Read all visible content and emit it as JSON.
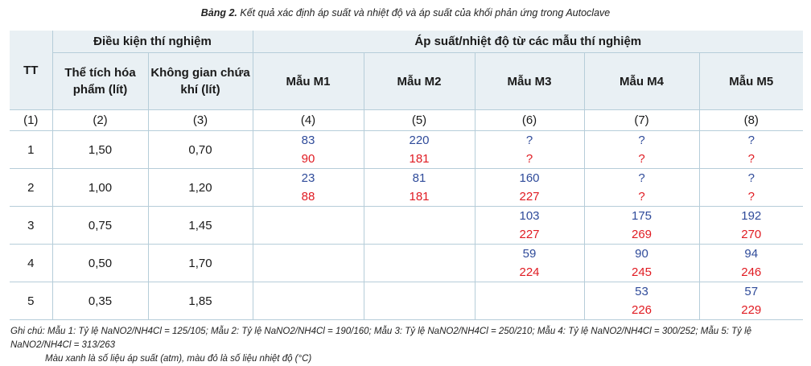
{
  "caption": {
    "bold": "Bảng 2.",
    "text": " Kết quả xác định áp suất và nhiệt độ và áp suất của khối phản ứng trong Autoclave"
  },
  "headers": {
    "tt": "TT",
    "conditions": "Điều kiện thí nghiệm",
    "volume": "Thể tích hóa phẩm (lít)",
    "space": "Không gian chứa khí (lít)",
    "results": "Áp suất/nhiệt độ từ các mẫu thí nghiệm",
    "samples": [
      "Mẫu M1",
      "Mẫu M2",
      "Mẫu M3",
      "Mẫu M4",
      "Mẫu M5"
    ]
  },
  "index_row": [
    "(1)",
    "(2)",
    "(3)",
    "(4)",
    "(5)",
    "(6)",
    "(7)",
    "(8)"
  ],
  "rows": [
    {
      "tt": "1",
      "volume": "1,50",
      "space": "0,70",
      "pressure": [
        "83",
        "220",
        "?",
        "?",
        "?"
      ],
      "temperature": [
        "90",
        "181",
        "?",
        "?",
        "?"
      ]
    },
    {
      "tt": "2",
      "volume": "1,00",
      "space": "1,20",
      "pressure": [
        "23",
        "81",
        "160",
        "?",
        "?"
      ],
      "temperature": [
        "88",
        "181",
        "227",
        "?",
        "?"
      ]
    },
    {
      "tt": "3",
      "volume": "0,75",
      "space": "1,45",
      "pressure": [
        "",
        "",
        "103",
        "175",
        "192"
      ],
      "temperature": [
        "",
        "",
        "227",
        "269",
        "270"
      ]
    },
    {
      "tt": "4",
      "volume": "0,50",
      "space": "1,70",
      "pressure": [
        "",
        "",
        "59",
        "90",
        "94"
      ],
      "temperature": [
        "",
        "",
        "224",
        "245",
        "246"
      ]
    },
    {
      "tt": "5",
      "volume": "0,35",
      "space": "1,85",
      "pressure": [
        "",
        "",
        "",
        "53",
        "57"
      ],
      "temperature": [
        "",
        "",
        "",
        "226",
        "229"
      ]
    }
  ],
  "note": {
    "line1": "Ghi chú: Mẫu 1: Tỷ lệ NaNO2/NH4Cl = 125/105; Mẫu 2: Tỷ lệ NaNO2/NH4Cl = 190/160; Mẫu 3: Tỷ lệ NaNO2/NH4Cl = 250/210; Mẫu 4: Tỷ lệ NaNO2/NH4Cl = 300/252; Mẫu 5: Tỷ lệ NaNO2/NH4Cl = 313/263",
    "line2": "Màu xanh là số liệu áp suất (atm), màu đỏ là số liệu nhiệt độ (°C)"
  },
  "colors": {
    "pressure": "#2f4b9a",
    "temperature": "#e01b22",
    "header_bg": "#e9f0f4",
    "grid": "#b6cdd9"
  }
}
